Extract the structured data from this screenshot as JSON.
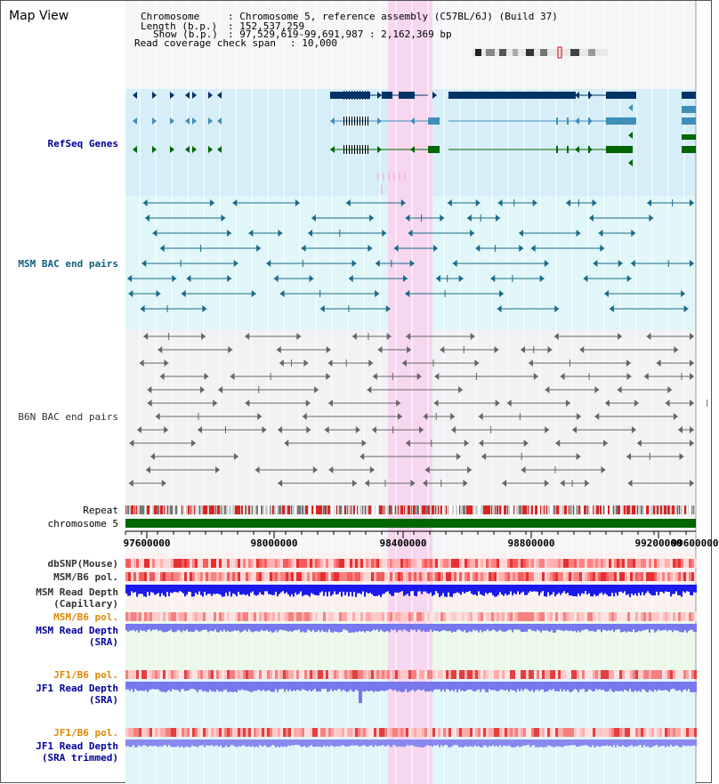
{
  "view": {
    "title": "Map View"
  },
  "header": {
    "chromosome_key": "Chromosome",
    "chromosome_val": ": Chromosome 5, reference assembly (C57BL/6J) (Build 37)",
    "length_key": "Length (b.p.)",
    "length_val": ": 152,537,259",
    "show_key": "Show (b.p.)",
    "show_val": ": 97,529,619-99,691,987 : 2,162,369 bp",
    "coverage_key": "Read coverage check span",
    "coverage_val": ": 10,000"
  },
  "tracks": {
    "refseq": "RefSeq Genes",
    "msm_bac": "MSM BAC end pairs",
    "b6n_bac": "B6N BAC end pairs",
    "repeat": "Repeat",
    "chromosome": "chromosome 5",
    "dbsnp": "dbSNP(Mouse)",
    "msm_b6_pol_1": "MSM/B6 pol.",
    "msm_read_depth_cap_1": "MSM Read Depth",
    "msm_read_depth_cap_2": "(Capillary)",
    "msm_b6_pol_2": "MSM/B6 pol.",
    "msm_read_depth_sra_1": "MSM Read Depth",
    "msm_read_depth_sra_2": "(SRA)",
    "jf1_b6_pol_1": "JF1/B6 pol.",
    "jf1_read_depth_sra_1": "JF1 Read Depth",
    "jf1_read_depth_sra_2": "(SRA)",
    "jf1_b6_pol_2": "JF1/B6 pol.",
    "jf1_read_depth_trim_1": "JF1 Read Depth",
    "jf1_read_depth_trim_2": "(SRA trimmed)"
  },
  "axis": {
    "ticks": [
      "97600000",
      "98000000",
      "98400000",
      "98800000",
      "99200000",
      "99600000"
    ]
  },
  "colors": {
    "refseq_bg": "#d6eef8",
    "msm_bac_bg": "#e0f6f8",
    "highlight": "#f7d6ef",
    "refseq_dark": "#003366",
    "refseq_mid": "#3d8fb8",
    "refseq_green": "#006600",
    "msm_bac": "#1a6a8a",
    "b6n_bac": "#666666",
    "chromosome_bar": "#006600",
    "repeat_red": "#dd2222",
    "depth_capillary": "#1a1aee",
    "depth_sra": "#7777ee",
    "label_blue": "#000099",
    "label_teal": "#0f5f7f",
    "label_orange": "#e08800"
  }
}
